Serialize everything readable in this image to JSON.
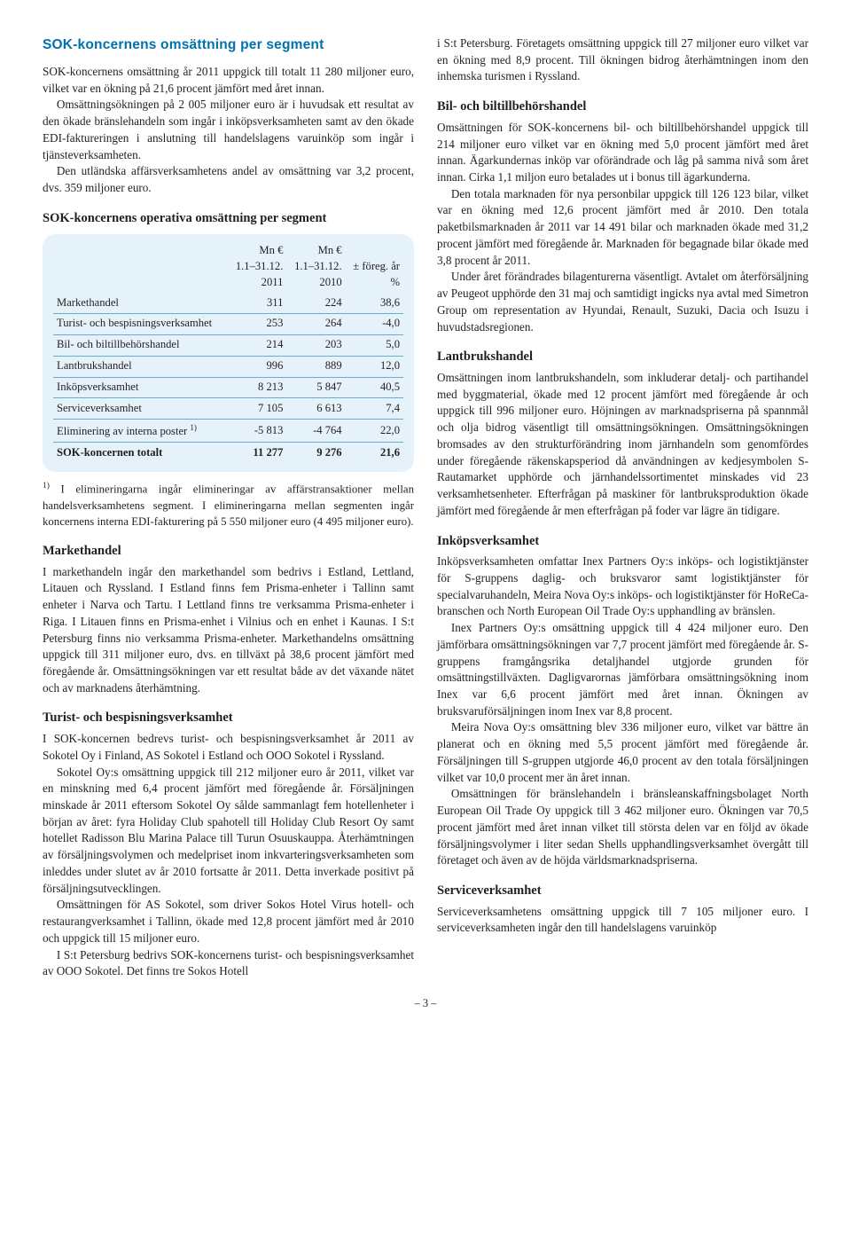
{
  "heading_main": "SOK-koncernens omsättning per segment",
  "intro_p1": "SOK-koncernens omsättning år 2011 uppgick till totalt 11 280 miljoner euro, vilket var en ökning på 21,6 procent jämfört med året innan.",
  "intro_p2": "Omsättningsökningen på 2 005 miljoner euro är i huvudsak ett resultat av den ökade bränslehandeln som ingår i inköpsverksamheten samt av den ökade EDI-faktureringen i anslutning till handelslagens varuinköp som ingår i tjänsteverksamheten.",
  "intro_p3": "Den utländska affärsverksamhetens andel av omsättning var 3,2 procent, dvs. 359 miljoner euro.",
  "table_title": "SOK-koncernens operativa omsättning per segment",
  "table": {
    "headers": {
      "c1": "",
      "c2a": "Mn €",
      "c2b": "1.1–31.12.",
      "c2c": "2011",
      "c3a": "Mn €",
      "c3b": "1.1–31.12.",
      "c3c": "2010",
      "c4a": "± föreg. år",
      "c4b": "%"
    },
    "rows": [
      {
        "label": "Markethandel",
        "v1": "311",
        "v2": "224",
        "v3": "38,6"
      },
      {
        "label": "Turist- och bespisningsverksamhet",
        "v1": "253",
        "v2": "264",
        "v3": "-4,0"
      },
      {
        "label": "Bil- och biltillbehörshandel",
        "v1": "214",
        "v2": "203",
        "v3": "5,0"
      },
      {
        "label": "Lantbrukshandel",
        "v1": "996",
        "v2": "889",
        "v3": "12,0"
      },
      {
        "label": "Inköpsverksamhet",
        "v1": "8 213",
        "v2": "5 847",
        "v3": "40,5"
      },
      {
        "label": "Serviceverksamhet",
        "v1": "7 105",
        "v2": "6 613",
        "v3": "7,4"
      },
      {
        "label": "Eliminering av interna poster ",
        "sup": "1)",
        "v1": "-5 813",
        "v2": "-4 764",
        "v3": "22,0"
      }
    ],
    "total": {
      "label": "SOK-koncernen totalt",
      "v1": "11 277",
      "v2": "9 276",
      "v3": "21,6"
    }
  },
  "footnote_marker": "1)",
  "footnote_text": " I elimineringarna ingår elimineringar av affärstransaktioner mellan handelsverksamhetens segment. I elimineringarna mellan segmenten ingår koncernens interna EDI-fakturering på 5 550 miljoner euro (4 495 miljoner euro).",
  "markethandel_h": "Markethandel",
  "markethandel_p": "I markethandeln ingår den markethandel som bedrivs i Estland, Lettland, Litauen och Ryssland. I Estland finns fem Prisma-enheter i Tallinn samt enheter i Narva och Tartu. I Lettland finns tre verksamma Prisma-enheter i Riga. I Litauen finns en Prisma-enhet i Vilnius och en enhet i Kaunas. I S:t Petersburg finns nio verksamma Prisma-enheter. Markethandelns omsättning uppgick till 311 miljoner euro, dvs. en tillväxt på 38,6 procent jämfört med föregående år. Omsättningsökningen var ett resultat både av det växande nätet och av marknadens återhämtning.",
  "turist_h": "Turist- och bespisningsverksamhet",
  "turist_p1": "I SOK-koncernen bedrevs turist- och bespisningsverksamhet år 2011 av Sokotel Oy i Finland, AS Sokotel i Estland och OOO Sokotel i Ryssland.",
  "turist_p2": "Sokotel Oy:s omsättning uppgick till 212 miljoner euro år 2011, vilket var en minskning med 6,4 procent jämfört med föregående år. Försäljningen minskade år 2011 eftersom Sokotel Oy sålde sammanlagt fem hotellenheter i början av året: fyra Holiday Club spahotell till Holiday Club Resort Oy samt hotellet Radisson Blu Marina Palace till Turun Osuuskauppa. Återhämtningen av försäljningsvolymen och medelpriset inom inkvarteringsverksamheten som inleddes under slutet av år 2010 fortsatte år 2011. Detta inverkade positivt på försäljningsutvecklingen.",
  "turist_p3": "Omsättningen för AS Sokotel, som driver Sokos Hotel Virus hotell- och restaurangverksamhet i Tallinn, ökade med 12,8 procent jämfört med år 2010 och uppgick till 15 miljoner euro.",
  "turist_p4": "I S:t Petersburg bedrivs SOK-koncernens turist- och bespisningsverksamhet av OOO Sokotel. Det finns tre Sokos Hotell",
  "col2_top": "i S:t Petersburg. Företagets omsättning uppgick till 27 miljoner euro vilket var en ökning med 8,9 procent. Till ökningen bidrog återhämtningen inom den inhemska turismen i Ryssland.",
  "bil_h": "Bil- och biltillbehörshandel",
  "bil_p1": "Omsättningen för SOK-koncernens bil- och biltillbehörshandel uppgick till 214 miljoner euro vilket var en ökning med 5,0 procent jämfört med året innan. Ägarkundernas inköp var oförändrade och låg på samma nivå som året innan. Cirka 1,1 miljon euro betalades ut i bonus till ägarkunderna.",
  "bil_p2": "Den totala marknaden för nya personbilar uppgick till 126 123 bilar, vilket var en ökning med 12,6 procent jämfört med år 2010. Den totala paketbilsmarknaden år 2011 var 14 491 bilar och marknaden ökade med 31,2 procent jämfört med föregående år. Marknaden för begagnade bilar ökade med 3,8 procent år 2011.",
  "bil_p3": "Under året förändrades bilagenturerna väsentligt. Avtalet om återförsäljning av Peugeot upphörde den 31 maj och samtidigt ingicks nya avtal med Simetron Group om representation av Hyundai, Renault, Suzuki, Dacia och Isuzu i huvudstadsregionen.",
  "lant_h": "Lantbrukshandel",
  "lant_p": "Omsättningen inom lantbrukshandeln, som inkluderar detalj- och partihandel med byggmaterial, ökade med 12 procent jämfört med föregående år och uppgick till 996 miljoner euro. Höjningen av marknadspriserna på spannmål och olja bidrog väsentligt till omsättningsökningen. Omsättningsökningen bromsades av den strukturförändring inom järnhandeln som genomfördes under föregående räkenskapsperiod då användningen av kedjesymbolen S-Rautamarket upphörde och järnhandelssortimentet minskades vid 23 verksamhetsenheter. Efterfrågan på maskiner för lantbruksproduktion ökade jämfört med föregående år men efterfrågan på foder var lägre än tidigare.",
  "inkop_h": "Inköpsverksamhet",
  "inkop_p1": "Inköpsverksamheten omfattar Inex Partners Oy:s inköps- och logistiktjänster för S-gruppens daglig- och bruksvaror samt logistiktjänster för specialvaruhandeln, Meira Nova Oy:s inköps- och logistiktjänster för HoReCa-branschen och North European Oil Trade Oy:s upphandling av bränslen.",
  "inkop_p2": "Inex Partners Oy:s omsättning uppgick till 4 424 miljoner euro. Den jämförbara omsättningsökningen var 7,7 procent jämfört med föregående år. S-gruppens framgångsrika detaljhandel utgjorde grunden för omsättningstillväxten. Dagligvarornas jämförbara omsättningsökning inom Inex var 6,6 procent jämfört med året innan. Ökningen av bruksvaruförsäljningen inom Inex var 8,8 procent.",
  "inkop_p3": "Meira Nova Oy:s omsättning blev 336 miljoner euro, vilket var bättre än planerat och en ökning med 5,5 procent jämfört med föregående år. Försäljningen till S-gruppen utgjorde 46,0 procent av den totala försäljningen vilket var 10,0 procent mer än året innan.",
  "inkop_p4": "Omsättningen för bränslehandeln i bränsleanskaffningsbolaget North European Oil Trade Oy uppgick till 3 462 miljoner euro. Ökningen var 70,5 procent jämfört med året innan vilket till största delen var en följd av ökade försäljningsvolymer i liter sedan Shells upphandlingsverksamhet övergått till företaget och även av de höjda världsmarknadspriserna.",
  "serv_h": "Serviceverksamhet",
  "serv_p": "Serviceverksamhetens omsättning uppgick till 7 105 miljoner euro. I serviceverksamheten ingår den till handelslagens varuinköp",
  "page_number": "– 3 –"
}
